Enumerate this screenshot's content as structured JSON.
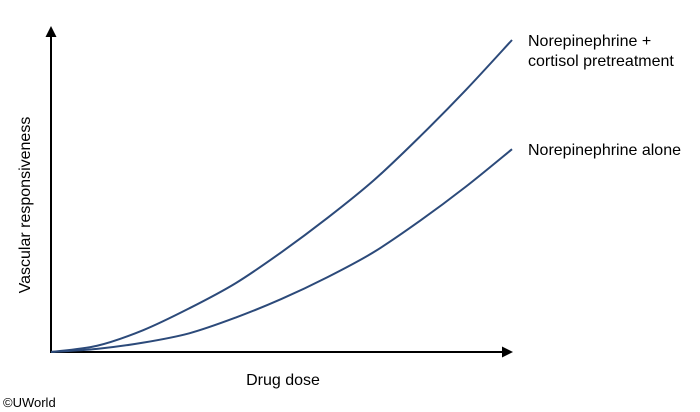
{
  "chart_data": {
    "type": "line",
    "xlabel": "Drug dose",
    "ylabel": "Vascular responsiveness",
    "xlim": [
      0,
      1
    ],
    "ylim": [
      0,
      1
    ],
    "grid": false,
    "series": [
      {
        "name": "Norepinephrine + cortisol pretreatment",
        "label_lines": [
          "Norepinephrine +",
          "cortisol pretreatment"
        ],
        "x": [
          0,
          0.1,
          0.2,
          0.3,
          0.4,
          0.5,
          0.6,
          0.7,
          0.8,
          0.9,
          1.0
        ],
        "y": [
          0,
          0.02,
          0.07,
          0.14,
          0.22,
          0.32,
          0.43,
          0.55,
          0.69,
          0.84,
          1.0
        ],
        "color": "#2c4a7a"
      },
      {
        "name": "Norepinephrine alone",
        "label_lines": [
          "Norepinephrine alone"
        ],
        "x": [
          0,
          0.1,
          0.2,
          0.3,
          0.4,
          0.5,
          0.6,
          0.7,
          0.8,
          0.9,
          1.0
        ],
        "y": [
          0,
          0.01,
          0.03,
          0.06,
          0.11,
          0.17,
          0.24,
          0.32,
          0.42,
          0.53,
          0.65
        ],
        "color": "#2c4a7a"
      }
    ]
  },
  "copyright": "©UWorld"
}
